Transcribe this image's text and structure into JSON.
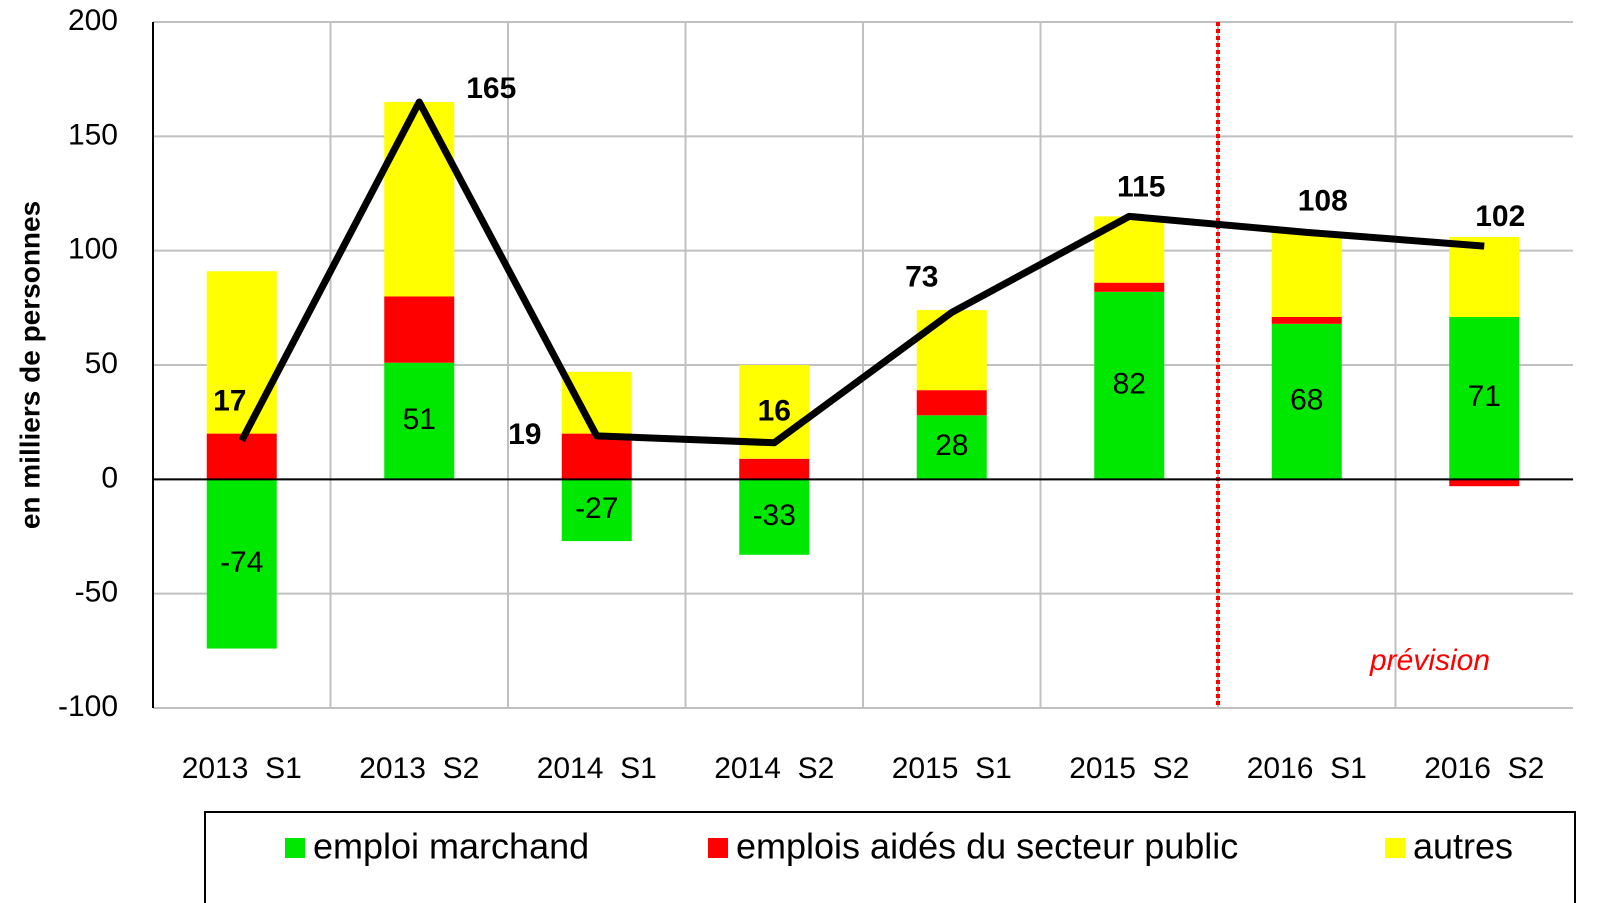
{
  "chart_data": {
    "type": "bar",
    "y_label": "en milliers de personnes",
    "annotation": "prévision",
    "categories": [
      "2013  S1",
      "2013  S2",
      "2014  S1",
      "2014  S2",
      "2015  S1",
      "2015  S2",
      "2016  S1",
      "2016  S2"
    ],
    "series": [
      {
        "name": "emploi marchand",
        "color": "#00e800",
        "show_labels": true,
        "values": [
          -74,
          51,
          -27,
          -33,
          28,
          82,
          68,
          71
        ]
      },
      {
        "name": "emplois aidés du secteur public",
        "color": "#ff0000",
        "values": [
          20,
          29,
          20,
          9,
          11,
          4,
          3,
          -3
        ]
      },
      {
        "name": "autres",
        "color": "#ffff00",
        "values": [
          71,
          85,
          27,
          41,
          35,
          29,
          37,
          35
        ]
      },
      {
        "type": "line",
        "color": "#000000",
        "show_labels": true,
        "values": [
          17,
          165,
          19,
          16,
          73,
          115,
          108,
          102
        ]
      }
    ],
    "ylim": [
      -100,
      200
    ],
    "yticks": [
      -100,
      -50,
      0,
      50,
      100,
      150,
      200
    ],
    "grid": true
  }
}
